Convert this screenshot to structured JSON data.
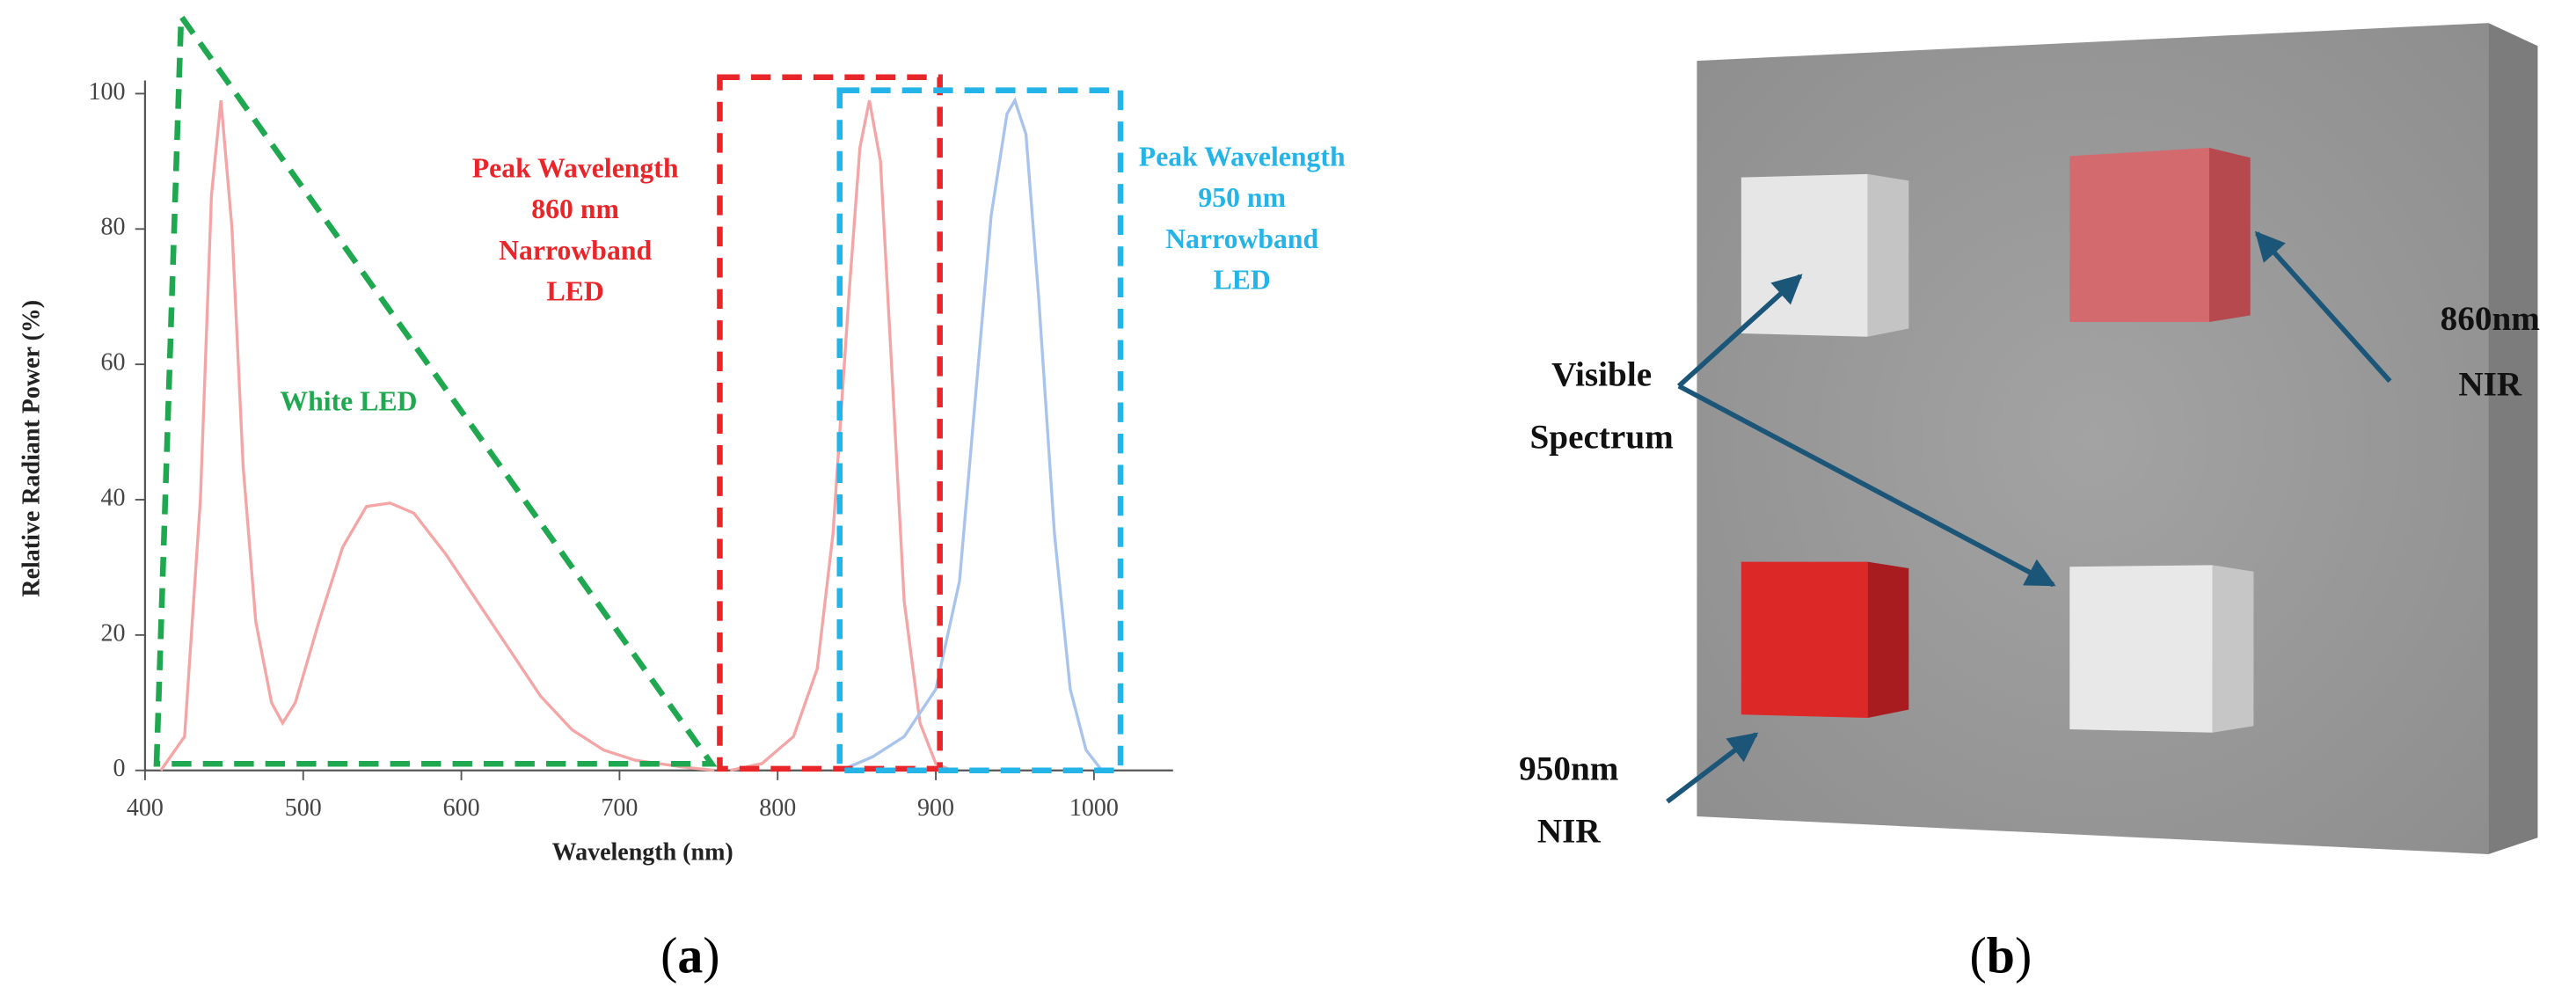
{
  "chart_data": {
    "type": "line",
    "xlabel": "Wavelength (nm)",
    "ylabel": "Relative Radiant Power (%)",
    "xlim": [
      400,
      1050
    ],
    "ylim": [
      0,
      100
    ],
    "xticks": [
      400,
      500,
      600,
      700,
      800,
      900,
      1000
    ],
    "yticks": [
      0,
      20,
      40,
      60,
      80,
      100
    ],
    "series": [
      {
        "color": "#f4a6a6",
        "x": [
          410,
          425,
          435,
          442,
          448,
          455,
          462,
          470,
          480,
          487,
          495,
          510,
          525,
          540,
          555,
          570,
          590,
          610,
          630,
          650,
          670,
          690,
          710,
          740,
          760
        ],
        "values": [
          0,
          5,
          40,
          85,
          99,
          80,
          45,
          22,
          10,
          7,
          10,
          22,
          33,
          39,
          39.5,
          38,
          32,
          25,
          18,
          11,
          6,
          3,
          1.5,
          0.5,
          0
        ]
      },
      {
        "color": "#f4a6a6",
        "x": [
          770,
          790,
          810,
          825,
          835,
          845,
          852,
          858,
          865,
          872,
          880,
          890,
          900,
          910
        ],
        "values": [
          0,
          1,
          5,
          15,
          35,
          70,
          92,
          99,
          90,
          60,
          25,
          7,
          1,
          0
        ]
      },
      {
        "color": "#a9c4ec",
        "x": [
          840,
          860,
          880,
          900,
          915,
          925,
          935,
          945,
          950,
          957,
          965,
          975,
          985,
          995,
          1005
        ],
        "values": [
          0,
          2,
          5,
          12,
          28,
          55,
          82,
          97,
          99,
          94,
          70,
          35,
          12,
          3,
          0
        ]
      }
    ],
    "annotations": [
      {
        "color": "#1fa84f",
        "lines": [
          "White LED"
        ]
      },
      {
        "color": "#e8262a",
        "lines": [
          "Peak Wavelength",
          "860 nm",
          "Narrowband",
          "LED"
        ]
      },
      {
        "color": "#25b4e8",
        "lines": [
          "Peak Wavelength",
          "950 nm",
          "Narrowband",
          "LED"
        ]
      }
    ]
  },
  "diagram": {
    "visible": [
      "Visible",
      "Spectrum"
    ],
    "nir860": [
      "860nm",
      "NIR"
    ],
    "nir950": [
      "950nm",
      "NIR"
    ]
  },
  "panel_labels": [
    "a",
    "b"
  ]
}
